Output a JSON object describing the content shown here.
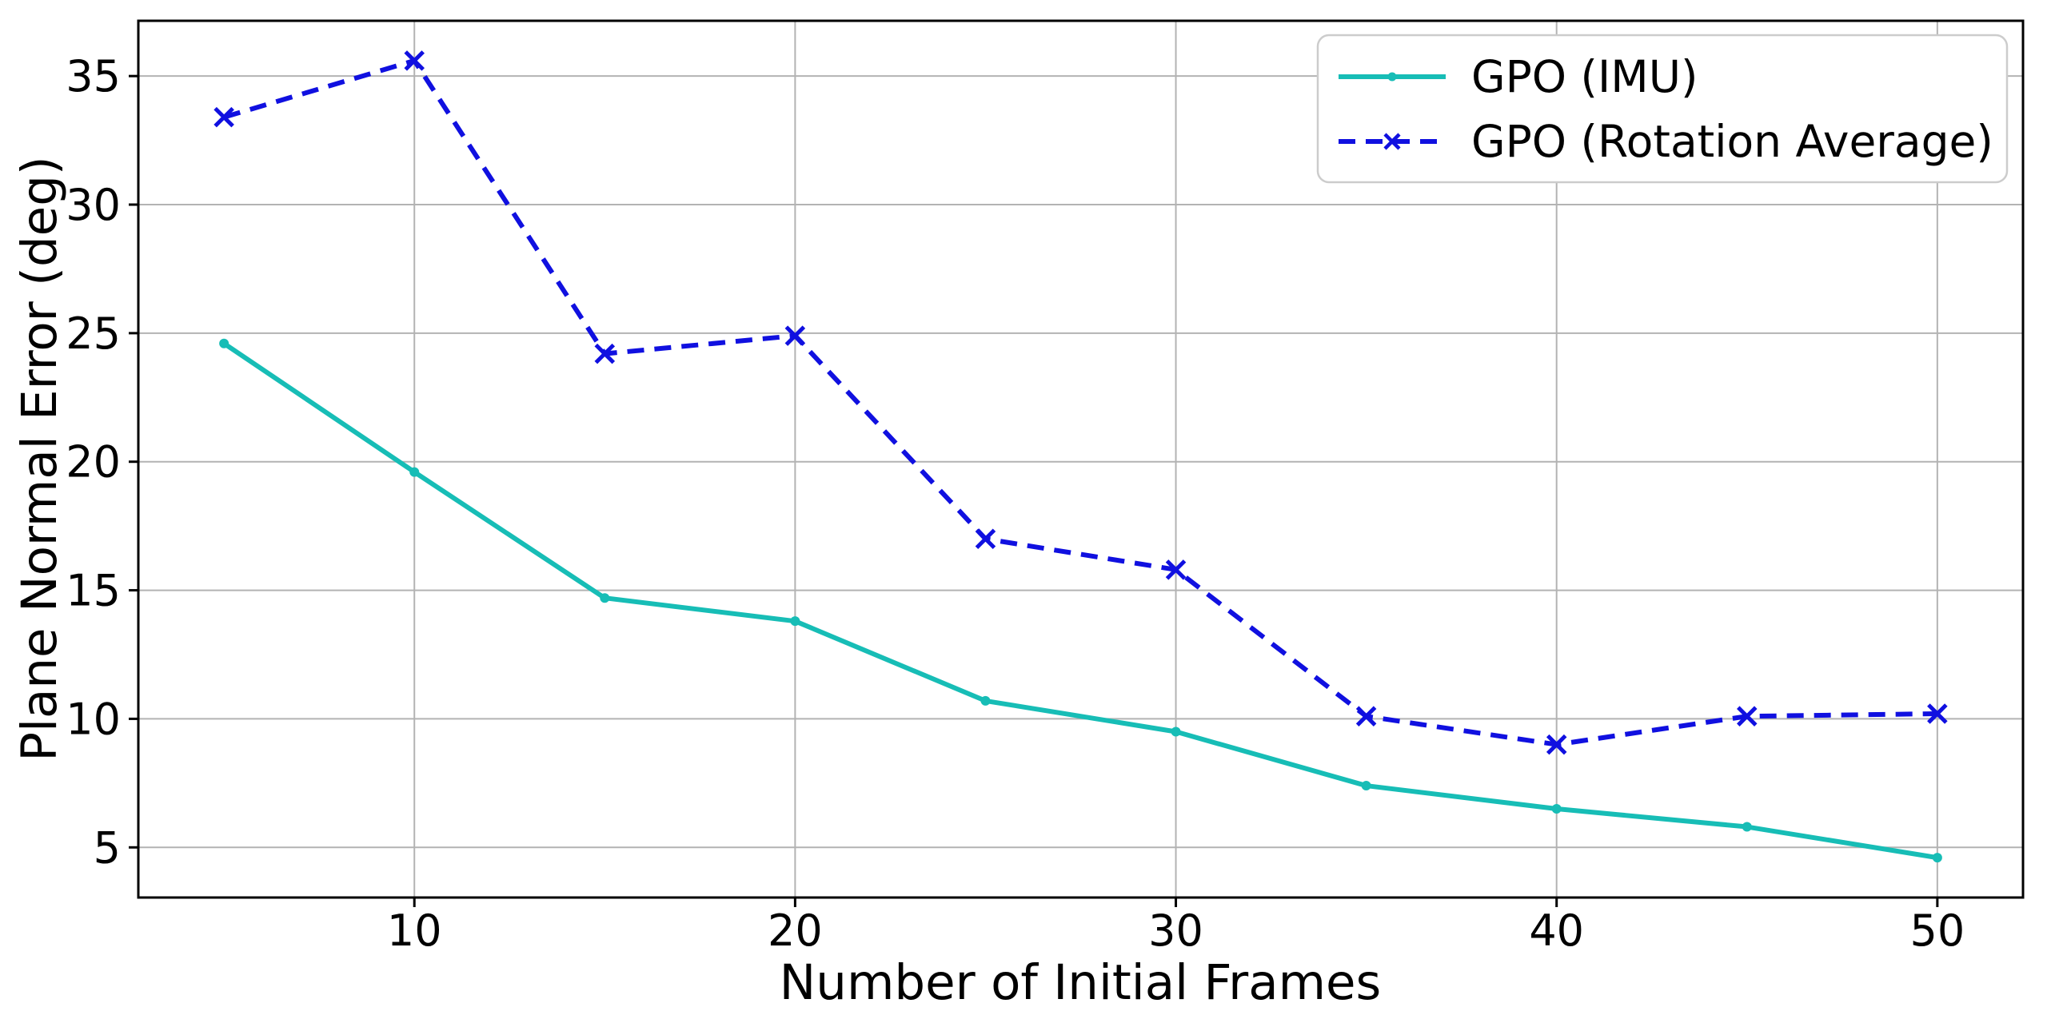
{
  "chart_data": {
    "type": "line",
    "title": "",
    "xlabel": "Number of Initial Frames",
    "ylabel": "Plane Normal Error (deg)",
    "x": [
      5,
      10,
      15,
      20,
      25,
      30,
      35,
      40,
      45,
      50
    ],
    "series": [
      {
        "name": "GPO (IMU)",
        "color": "#17bdb6",
        "linestyle": "solid",
        "marker": "dot",
        "values": [
          24.6,
          19.6,
          14.7,
          13.8,
          10.7,
          9.5,
          7.4,
          6.5,
          5.8,
          4.6
        ]
      },
      {
        "name": "GPO (Rotation Average)",
        "color": "#1010e0",
        "linestyle": "dashed",
        "marker": "x",
        "values": [
          33.4,
          35.6,
          24.2,
          24.9,
          17.0,
          15.8,
          10.1,
          9.0,
          10.1,
          10.2
        ]
      }
    ],
    "xticks": [
      "10",
      "20",
      "30",
      "40",
      "50"
    ],
    "yticks": [
      "5",
      "10",
      "15",
      "20",
      "25",
      "30",
      "35"
    ],
    "xtick_values": [
      10,
      20,
      30,
      40,
      50
    ],
    "ytick_values": [
      5,
      10,
      15,
      20,
      25,
      30,
      35
    ],
    "xlim": [
      2.75,
      52.25
    ],
    "ylim": [
      3.05,
      37.15
    ],
    "grid": true,
    "grid_color": "#b3b3b3",
    "spine_color": "#000000",
    "background": "#ffffff",
    "legend_position": "upper right"
  }
}
